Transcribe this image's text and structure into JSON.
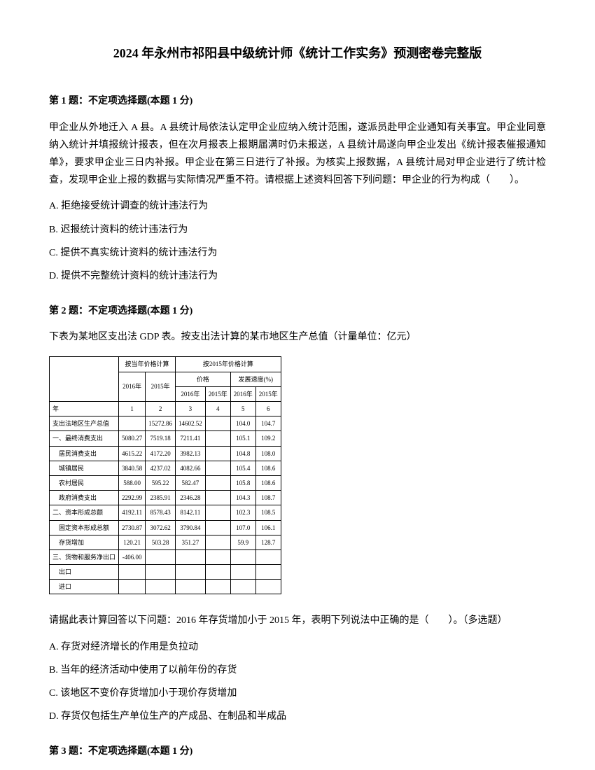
{
  "title": "2024 年永州市祁阳县中级统计师《统计工作实务》预测密卷完整版",
  "q1": {
    "header": "第 1 题：不定项选择题(本题 1 分)",
    "body": "甲企业从外地迁入 A 县。A 县统计局依法认定甲企业应纳入统计范围，遂派员赴甲企业通知有关事宜。甲企业同意纳入统计并填报统计报表，但在次月报表上报期届满时仍未报送，A 县统计局遂向甲企业发出《统计报表催报通知单》，要求甲企业三日内补报。甲企业在第三日进行了补报。为核实上报数据，A 县统计局对甲企业进行了统计检查，发现甲企业上报的数据与实际情况严重不符。请根据上述资料回答下列问题：甲企业的行为构成（　　）。",
    "optA": "A. 拒绝接受统计调查的统计违法行为",
    "optB": "B. 迟报统计资料的统计违法行为",
    "optC": "C. 提供不真实统计资料的统计违法行为",
    "optD": "D. 提供不完整统计资料的统计违法行为"
  },
  "q2": {
    "header": "第 2 题：不定项选择题(本题 1 分)",
    "intro": "下表为某地区支出法 GDP 表。按支出法计算的某市地区生产总值（计量单位：亿元）",
    "body": "请据此表计算回答以下问题：2016 年存货增加小于 2015 年，表明下列说法中正确的是（　　）。（多选题）",
    "optA": "A. 存货对经济增长的作用是负拉动",
    "optB": "B. 当年的经济活动中使用了以前年份的存货",
    "optC": "C. 该地区不变价存货增加小于现价存货增加",
    "optD": "D. 存货仅包括生产单位生产的产成品、在制品和半成品"
  },
  "q3": {
    "header": "第 3 题：不定项选择题(本题 1 分)"
  },
  "table": {
    "header_group1": "按当年价格计算",
    "header_group2": "按2015年价格计算",
    "col_2016": "2016年",
    "col_2015": "2015年",
    "sub_col1": "价格",
    "sub_col2": "发展速度(%)",
    "sub_2016": "2016年",
    "sub_2015": "2015年",
    "sub_2016b": "2016年",
    "sub_2015b": "2015年",
    "row_year": "年",
    "idx1": "1",
    "idx2": "2",
    "idx3": "3",
    "idx4": "4",
    "idx5": "5",
    "idx6": "6",
    "rows": [
      {
        "label": "支出法地区生产总值",
        "c1": "",
        "c2": "15272.86",
        "c3": "14602.52",
        "c4": "",
        "c5": "104.0",
        "c6": "104.7"
      },
      {
        "label": "一、最终消费支出",
        "c1": "5080.27",
        "c2": "7519.18",
        "c3": "7211.41",
        "c4": "",
        "c5": "105.1",
        "c6": "109.2"
      },
      {
        "label": "　居民消费支出",
        "c1": "4615.22",
        "c2": "4172.20",
        "c3": "3982.13",
        "c4": "",
        "c5": "104.8",
        "c6": "108.0"
      },
      {
        "label": "　城镇居民",
        "c1": "3840.58",
        "c2": "4237.02",
        "c3": "4082.66",
        "c4": "",
        "c5": "105.4",
        "c6": "108.6"
      },
      {
        "label": "　农村居民",
        "c1": "588.00",
        "c2": "595.22",
        "c3": "582.47",
        "c4": "",
        "c5": "105.8",
        "c6": "108.6"
      },
      {
        "label": "　政府消费支出",
        "c1": "2292.99",
        "c2": "2385.91",
        "c3": "2346.28",
        "c4": "",
        "c5": "104.3",
        "c6": "108.7"
      },
      {
        "label": "二、资本形成总额",
        "c1": "4192.11",
        "c2": "8578.43",
        "c3": "8142.11",
        "c4": "",
        "c5": "102.3",
        "c6": "108.5"
      },
      {
        "label": "　固定资本形成总额",
        "c1": "2730.87",
        "c2": "3072.62",
        "c3": "3790.84",
        "c4": "",
        "c5": "107.0",
        "c6": "106.1"
      },
      {
        "label": "　存货增加",
        "c1": "120.21",
        "c2": "503.28",
        "c3": "351.27",
        "c4": "",
        "c5": "59.9",
        "c6": "128.7"
      },
      {
        "label": "三、货物和服务净出口",
        "c1": "-406.00",
        "c2": "",
        "c3": "",
        "c4": "",
        "c5": "",
        "c6": ""
      },
      {
        "label": "　出口",
        "c1": "",
        "c2": "",
        "c3": "",
        "c4": "",
        "c5": "",
        "c6": ""
      },
      {
        "label": "　进口",
        "c1": "",
        "c2": "",
        "c3": "",
        "c4": "",
        "c5": "",
        "c6": ""
      }
    ]
  }
}
